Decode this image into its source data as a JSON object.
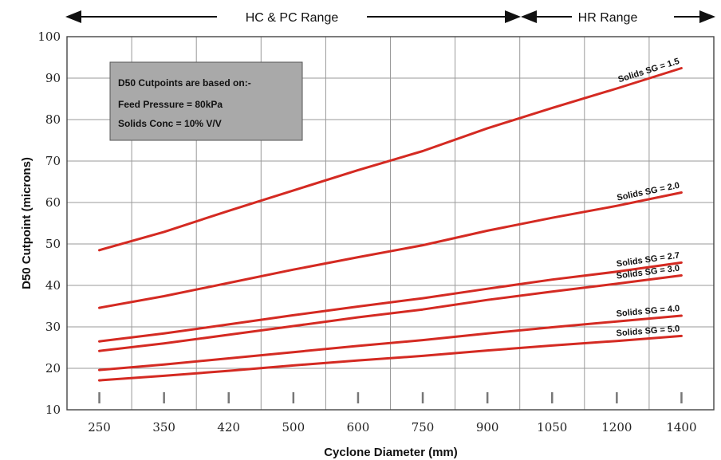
{
  "chart_data": {
    "type": "line",
    "xlabel": "Cyclone Diameter (mm)",
    "ylabel": "D50 Cutpoint (microns)",
    "categories": [
      "250",
      "350",
      "420",
      "500",
      "600",
      "750",
      "900",
      "1050",
      "1200",
      "1400"
    ],
    "ylim": [
      10,
      100
    ],
    "yticks": [
      10,
      20,
      30,
      40,
      50,
      60,
      70,
      80,
      90,
      100
    ],
    "grid": true,
    "line_color": "#d42a22",
    "series": [
      {
        "name": "Solids SG = 1.5",
        "values": [
          48.5,
          52.9,
          58.0,
          62.9,
          67.8,
          72.4,
          77.9,
          82.8,
          87.5,
          92.4
        ]
      },
      {
        "name": "Solids SG = 2.0",
        "values": [
          34.6,
          37.4,
          40.6,
          43.8,
          46.8,
          49.7,
          53.2,
          56.3,
          59.2,
          62.4
        ]
      },
      {
        "name": "Solids SG = 2.7",
        "values": [
          26.5,
          28.4,
          30.6,
          32.8,
          34.9,
          36.9,
          39.2,
          41.4,
          43.3,
          45.5
        ]
      },
      {
        "name": "Solids SG = 3.0",
        "values": [
          24.2,
          26.0,
          28.1,
          30.2,
          32.3,
          34.2,
          36.5,
          38.5,
          40.4,
          42.4
        ]
      },
      {
        "name": "Solids SG = 4.0",
        "values": [
          19.6,
          20.9,
          22.4,
          23.9,
          25.4,
          26.8,
          28.4,
          29.9,
          31.3,
          32.7
        ]
      },
      {
        "name": "Solids SG = 5.0",
        "values": [
          17.1,
          18.2,
          19.4,
          20.7,
          21.9,
          23.0,
          24.3,
          25.5,
          26.6,
          27.8
        ]
      }
    ],
    "ranges": [
      {
        "label": "HC & PC Range"
      },
      {
        "label": "HR Range"
      }
    ],
    "annotation": {
      "lines": [
        "D50 Cutpoints are based on:-",
        "Feed Pressure = 80kPa",
        "Solids Conc = 10% V/V"
      ]
    }
  }
}
